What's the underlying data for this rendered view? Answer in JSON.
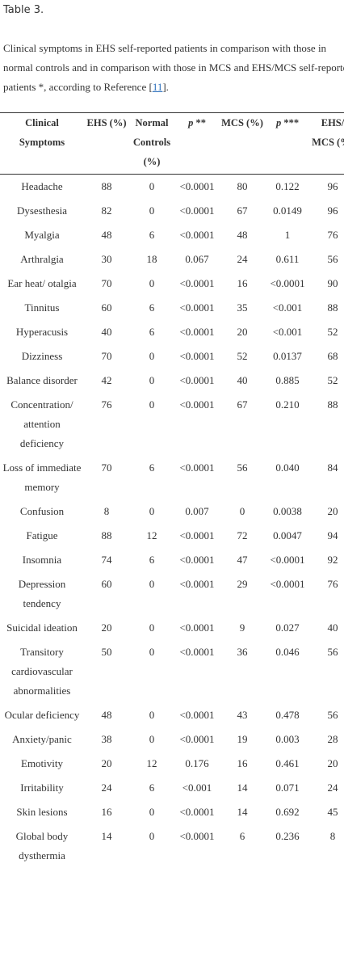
{
  "title": "Table 3.",
  "caption": {
    "text": "Clinical symptoms in EHS self-reported patients in comparison with those in normal controls and in comparison with those in MCS and EHS/MCS self-reported patients *, according to Reference [",
    "reference": "11",
    "end": "]."
  },
  "table": {
    "headers": [
      "Clinical Symptoms",
      "EHS (%)",
      "Normal Controls (%)",
      {
        "italic": "p",
        "text": "**"
      },
      "MCS (%)",
      {
        "italic": "p",
        "text": "***"
      },
      "EHS/ MCS (%)"
    ],
    "rows": [
      [
        "Headache",
        "88",
        "0",
        "<0.0001",
        "80",
        "0.122",
        "96"
      ],
      [
        "Dysesthesia",
        "82",
        "0",
        "<0.0001",
        "67",
        "0.0149",
        "96"
      ],
      [
        "Myalgia",
        "48",
        "6",
        "<0.0001",
        "48",
        "1",
        "76"
      ],
      [
        "Arthralgia",
        "30",
        "18",
        "0.067",
        "24",
        "0.611",
        "56"
      ],
      [
        "Ear heat/ otalgia",
        "70",
        "0",
        "<0.0001",
        "16",
        "<0.0001",
        "90"
      ],
      [
        "Tinnitus",
        "60",
        "6",
        "<0.0001",
        "35",
        "<0.001",
        "88"
      ],
      [
        "Hyperacusis",
        "40",
        "6",
        "<0.0001",
        "20",
        "<0.001",
        "52"
      ],
      [
        "Dizziness",
        "70",
        "0",
        "<0.0001",
        "52",
        "0.0137",
        "68"
      ],
      [
        "Balance disorder",
        "42",
        "0",
        "<0.0001",
        "40",
        "0.885",
        "52"
      ],
      [
        "Concentration/ attention deficiency",
        "76",
        "0",
        "<0.0001",
        "67",
        "0.210",
        "88"
      ],
      [
        "Loss of immediate memory",
        "70",
        "6",
        "<0.0001",
        "56",
        "0.040",
        "84"
      ],
      [
        "Confusion",
        "8",
        "0",
        "0.007",
        "0",
        "0.0038",
        "20"
      ],
      [
        "Fatigue",
        "88",
        "12",
        "<0.0001",
        "72",
        "0.0047",
        "94"
      ],
      [
        "Insomnia",
        "74",
        "6",
        "<0.0001",
        "47",
        "<0.0001",
        "92"
      ],
      [
        "Depression tendency",
        "60",
        "0",
        "<0.0001",
        "29",
        "<0.0001",
        "76"
      ],
      [
        "Suicidal ideation",
        "20",
        "0",
        "<0.0001",
        "9",
        "0.027",
        "40"
      ],
      [
        "Transitory cardiovascular abnormalities",
        "50",
        "0",
        "<0.0001",
        "36",
        "0.046",
        "56"
      ],
      [
        "Ocular deficiency",
        "48",
        "0",
        "<0.0001",
        "43",
        "0.478",
        "56"
      ],
      [
        "Anxiety/panic",
        "38",
        "0",
        "<0.0001",
        "19",
        "0.003",
        "28"
      ],
      [
        "Emotivity",
        "20",
        "12",
        "0.176",
        "16",
        "0.461",
        "20"
      ],
      [
        "Irritability",
        "24",
        "6",
        "<0.001",
        "14",
        "0.071",
        "24"
      ],
      [
        "Skin lesions",
        "16",
        "0",
        "<0.0001",
        "14",
        "0.692",
        "45"
      ],
      [
        "Global body dysthermia",
        "14",
        "0",
        "<0.0001",
        "6",
        "0.236",
        "8"
      ]
    ]
  }
}
